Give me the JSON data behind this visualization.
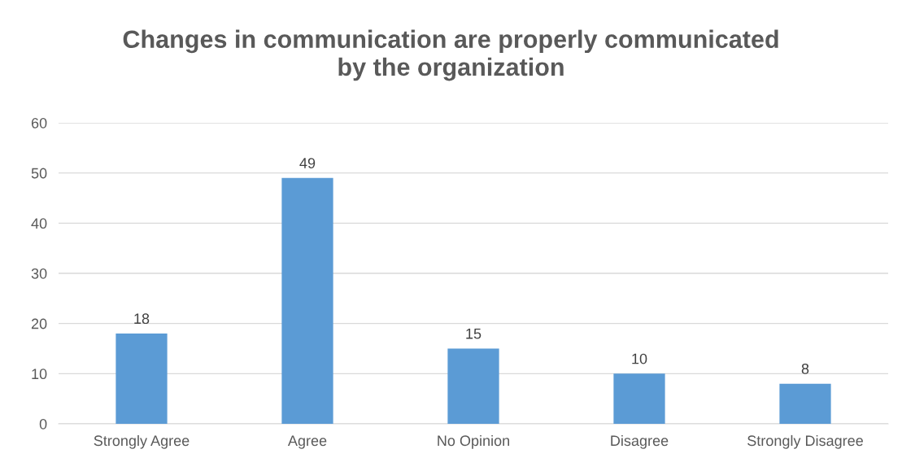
{
  "chart_data": {
    "type": "bar",
    "title": "Changes in communication are properly communicated\nby the organization",
    "categories": [
      "Strongly Agree",
      "Agree",
      "No Opinion",
      "Disagree",
      "Strongly Disagree"
    ],
    "values": [
      18,
      49,
      15,
      10,
      8
    ],
    "color": "#5b9bd5",
    "ylim": [
      0,
      60
    ],
    "yticks": [
      0,
      10,
      20,
      30,
      40,
      50,
      60
    ],
    "grid": "y",
    "data_labels": true,
    "legend": false
  }
}
